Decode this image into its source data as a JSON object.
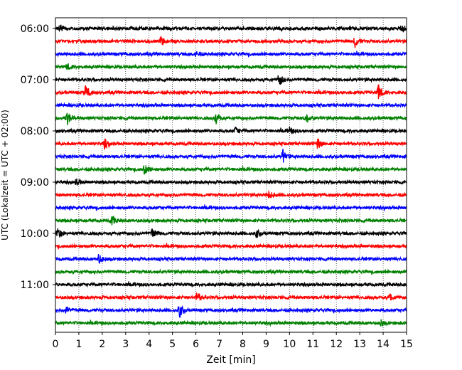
{
  "chart_data": {
    "type": "line",
    "title": "",
    "xlabel": "Zeit  [min]",
    "ylabel": "UTC (Lokalzeit = UTC + 02:00)",
    "xlim": [
      0,
      15
    ],
    "x_ticks": [
      "0",
      "1",
      "2",
      "3",
      "4",
      "5",
      "6",
      "7",
      "8",
      "9",
      "10",
      "11",
      "12",
      "13",
      "14",
      "15"
    ],
    "y_tick_labels": [
      "06:00",
      "07:00",
      "08:00",
      "09:00",
      "10:00",
      "11:00"
    ],
    "grid": "vertical-dotted",
    "trace_interval_min": 15,
    "series": [
      {
        "start": "06:00",
        "color": "#000000",
        "events": [
          {
            "t": 0.2,
            "a": 0.6
          },
          {
            "t": 14.8,
            "a": 0.7
          }
        ]
      },
      {
        "start": "06:15",
        "color": "#ff0000",
        "events": [
          {
            "t": 4.5,
            "a": 0.9
          },
          {
            "t": 12.8,
            "a": 1.2
          }
        ]
      },
      {
        "start": "06:30",
        "color": "#0000ff",
        "events": [
          {
            "t": 6.0,
            "a": 0.5
          }
        ]
      },
      {
        "start": "06:45",
        "color": "#008000",
        "events": [
          {
            "t": 0.5,
            "a": 0.6
          }
        ]
      },
      {
        "start": "07:00",
        "color": "#000000",
        "events": [
          {
            "t": 9.55,
            "a": 1.4
          }
        ]
      },
      {
        "start": "07:15",
        "color": "#ff0000",
        "events": [
          {
            "t": 1.3,
            "a": 1.5
          },
          {
            "t": 13.8,
            "a": 1.6
          }
        ]
      },
      {
        "start": "07:30",
        "color": "#0000ff",
        "events": []
      },
      {
        "start": "07:45",
        "color": "#008000",
        "events": [
          {
            "t": 0.5,
            "a": 1.3
          },
          {
            "t": 6.85,
            "a": 1.3
          },
          {
            "t": 10.7,
            "a": 1.2
          }
        ]
      },
      {
        "start": "08:00",
        "color": "#000000",
        "events": [
          {
            "t": 7.7,
            "a": 0.7
          },
          {
            "t": 10.0,
            "a": 0.7
          }
        ]
      },
      {
        "start": "08:15",
        "color": "#ff0000",
        "events": [
          {
            "t": 2.1,
            "a": 0.9
          },
          {
            "t": 11.2,
            "a": 1.0
          }
        ]
      },
      {
        "start": "08:30",
        "color": "#0000ff",
        "events": [
          {
            "t": 9.7,
            "a": 1.4
          }
        ]
      },
      {
        "start": "08:45",
        "color": "#008000",
        "events": [
          {
            "t": 3.8,
            "a": 1.1
          }
        ]
      },
      {
        "start": "09:00",
        "color": "#000000",
        "events": [
          {
            "t": 0.9,
            "a": 0.6
          }
        ]
      },
      {
        "start": "09:15",
        "color": "#ff0000",
        "events": [
          {
            "t": 9.1,
            "a": 0.8
          }
        ]
      },
      {
        "start": "09:30",
        "color": "#0000ff",
        "events": []
      },
      {
        "start": "09:45",
        "color": "#008000",
        "events": [
          {
            "t": 2.4,
            "a": 1.1
          }
        ]
      },
      {
        "start": "10:00",
        "color": "#000000",
        "events": [
          {
            "t": 0.1,
            "a": 1.2
          },
          {
            "t": 4.15,
            "a": 1.1
          },
          {
            "t": 8.6,
            "a": 0.9
          }
        ]
      },
      {
        "start": "10:15",
        "color": "#ff0000",
        "events": []
      },
      {
        "start": "10:30",
        "color": "#0000ff",
        "events": [
          {
            "t": 1.85,
            "a": 0.9
          }
        ]
      },
      {
        "start": "10:45",
        "color": "#008000",
        "events": []
      },
      {
        "start": "11:00",
        "color": "#000000",
        "events": []
      },
      {
        "start": "11:15",
        "color": "#ff0000",
        "events": [
          {
            "t": 6.05,
            "a": 1.1
          },
          {
            "t": 14.3,
            "a": 0.8
          }
        ]
      },
      {
        "start": "11:30",
        "color": "#0000ff",
        "events": [
          {
            "t": 0.45,
            "a": 0.8
          },
          {
            "t": 5.3,
            "a": 1.6
          }
        ]
      },
      {
        "start": "11:45",
        "color": "#008000",
        "events": [
          {
            "t": 13.9,
            "a": 0.6
          }
        ]
      }
    ]
  }
}
